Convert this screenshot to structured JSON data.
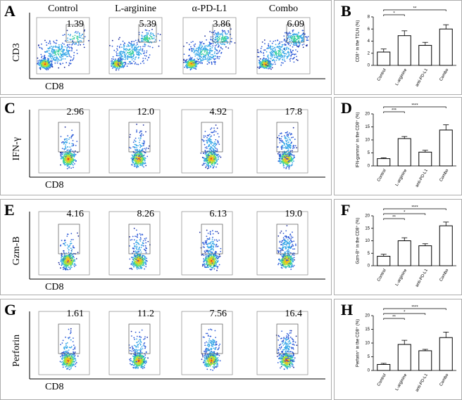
{
  "figure": {
    "panels": [
      {
        "letter": "A",
        "y_label": "CD3",
        "x_label": "CD8",
        "column_headers": [
          "Control",
          "L-arginine",
          "α-PD-L1",
          "Combo"
        ],
        "gates": [
          "1.39",
          "5.39",
          "3.86",
          "6.09"
        ]
      },
      {
        "letter": "C",
        "y_label": "IFN-γ",
        "x_label": "CD8",
        "gates": [
          "2.96",
          "12.0",
          "4.92",
          "17.8"
        ]
      },
      {
        "letter": "E",
        "y_label": "Gzm-B",
        "x_label": "CD8",
        "gates": [
          "4.16",
          "8.26",
          "6.13",
          "19.0"
        ]
      },
      {
        "letter": "G",
        "y_label": "Perforin",
        "x_label": "CD8",
        "gates": [
          "1.61",
          "11.2",
          "7.56",
          "16.4"
        ]
      }
    ]
  },
  "chart_data": [
    {
      "type": "bar",
      "panel": "B",
      "ylabel": "CD8⁺ in the TDLN (%)",
      "categories": [
        "Control",
        "L-arginine",
        "anti-PD-L1",
        "Combo"
      ],
      "values": [
        2.2,
        4.9,
        3.3,
        6.0
      ],
      "errors": [
        0.5,
        0.8,
        0.5,
        0.7
      ],
      "color": "#ffffff",
      "ylim": [
        0,
        8
      ],
      "yticks": [
        0,
        2,
        4,
        6,
        8
      ],
      "significance": [
        {
          "text": "*",
          "between": [
            "Control",
            "L-arginine"
          ]
        },
        {
          "text": "**",
          "between": [
            "Control",
            "Combo"
          ]
        }
      ]
    },
    {
      "type": "bar",
      "panel": "D",
      "ylabel": "IFN-gamma⁺ in the CD8⁺ (%)",
      "categories": [
        "Control",
        "L-arginine",
        "anti-PD-L1",
        "Combo"
      ],
      "values": [
        2.8,
        10.5,
        5.3,
        13.8
      ],
      "errors": [
        0.3,
        0.8,
        0.7,
        2.0
      ],
      "color": "#ffffff",
      "ylim": [
        0,
        20
      ],
      "yticks": [
        0,
        5,
        10,
        15,
        20
      ],
      "significance": [
        {
          "text": "***",
          "between": [
            "Control",
            "L-arginine"
          ]
        },
        {
          "text": "****",
          "between": [
            "Control",
            "Combo"
          ]
        }
      ]
    },
    {
      "type": "bar",
      "panel": "F",
      "ylabel": "Gzm-B⁺ in the CD8⁺ (%)",
      "categories": [
        "Control",
        "L-arginine",
        "anti-PD-L1",
        "Combo"
      ],
      "values": [
        3.8,
        10.0,
        8.0,
        16.0
      ],
      "errors": [
        0.8,
        1.2,
        0.8,
        1.5
      ],
      "color": "#ffffff",
      "ylim": [
        0,
        20
      ],
      "yticks": [
        0,
        5,
        10,
        15,
        20
      ],
      "significance": [
        {
          "text": "**",
          "between": [
            "Control",
            "L-arginine"
          ]
        },
        {
          "text": "*",
          "between": [
            "Control",
            "anti-PD-L1"
          ]
        },
        {
          "text": "****",
          "between": [
            "Control",
            "Combo"
          ]
        }
      ]
    },
    {
      "type": "bar",
      "panel": "H",
      "ylabel": "Perforin⁺ in the CD8⁺ (%)",
      "categories": [
        "Control",
        "L-arginine",
        "anti-PD-L1",
        "Combo"
      ],
      "values": [
        2.2,
        9.5,
        7.2,
        12.0
      ],
      "errors": [
        0.4,
        1.5,
        0.5,
        2.0
      ],
      "color": "#ffffff",
      "ylim": [
        0,
        20
      ],
      "yticks": [
        0,
        5,
        10,
        15,
        20
      ],
      "significance": [
        {
          "text": "**",
          "between": [
            "Control",
            "L-arginine"
          ]
        },
        {
          "text": "*",
          "between": [
            "Control",
            "anti-PD-L1"
          ]
        },
        {
          "text": "****",
          "between": [
            "Control",
            "Combo"
          ]
        }
      ]
    }
  ]
}
